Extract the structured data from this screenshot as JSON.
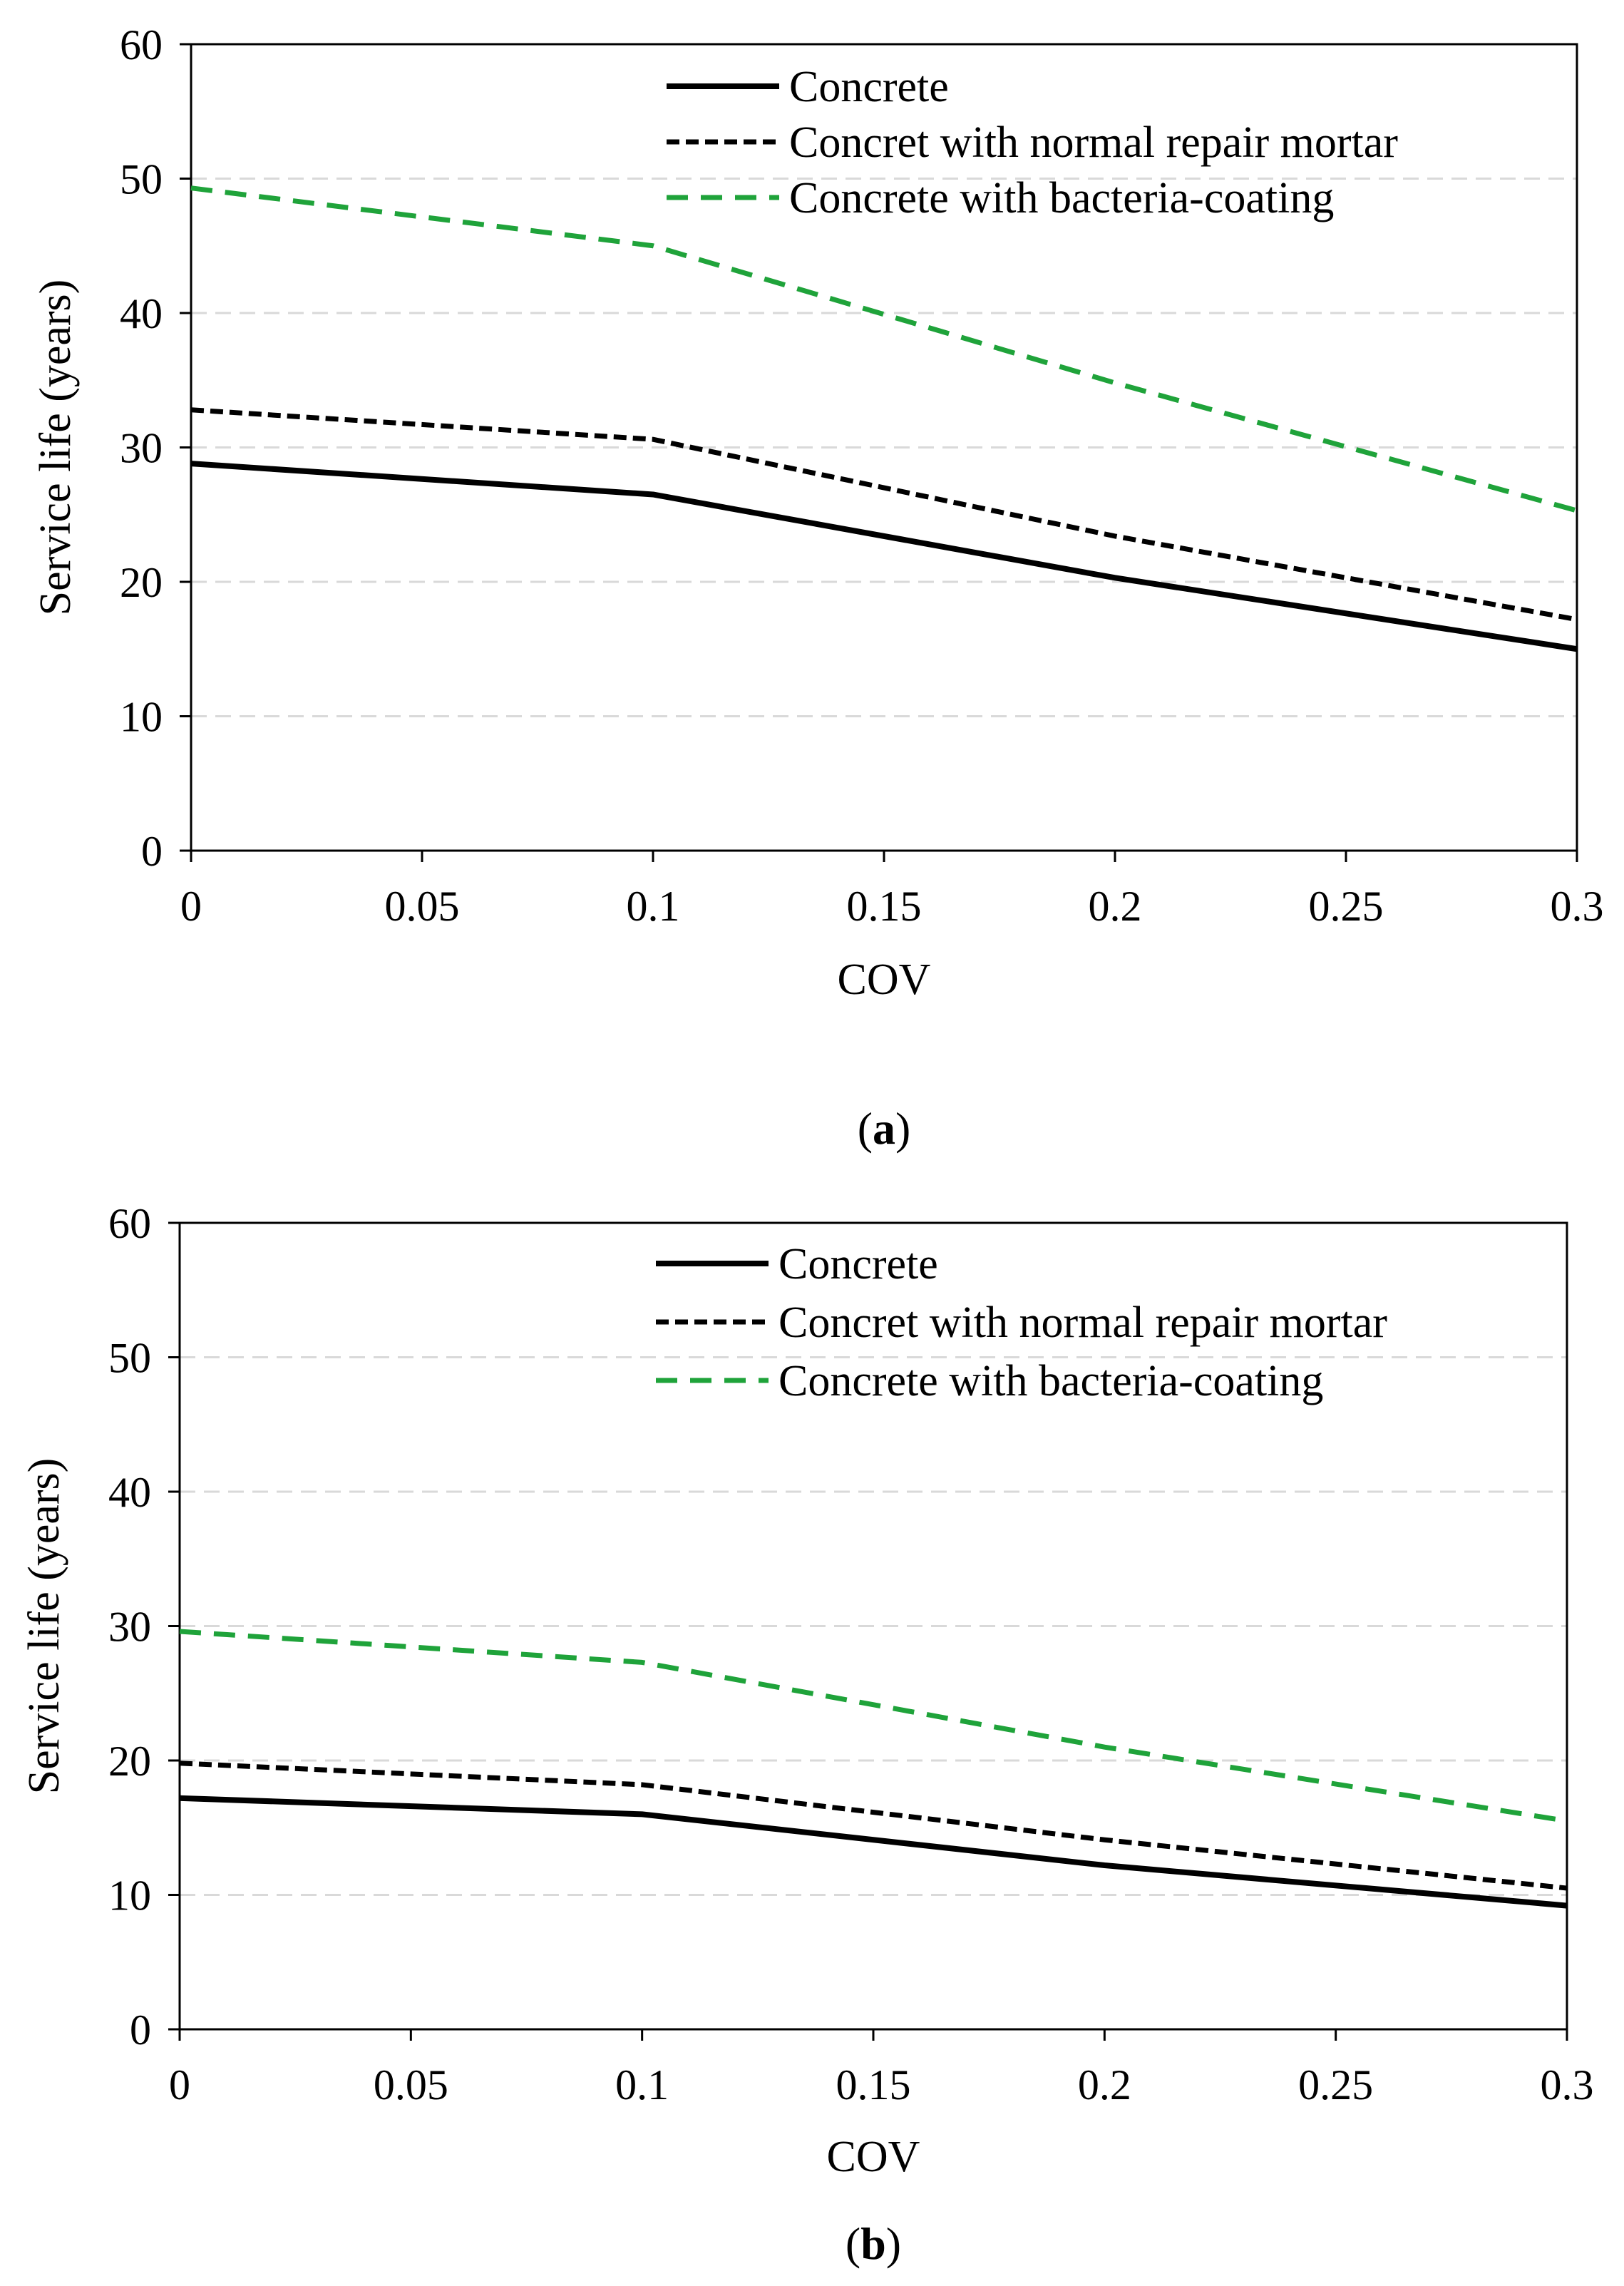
{
  "chart_data": [
    {
      "type": "line",
      "caption_open": "(",
      "caption_letter": "a",
      "caption_close": ")",
      "xlabel": "COV",
      "ylabel": "Service life (years)",
      "xlim": [
        0,
        0.3
      ],
      "ylim": [
        0,
        60
      ],
      "x_ticks": [
        "0",
        "0.05",
        "0.1",
        "0.15",
        "0.2",
        "0.25",
        "0.3"
      ],
      "y_ticks": [
        "0",
        "10",
        "20",
        "30",
        "40",
        "50",
        "60"
      ],
      "grid": "horizontal dashed",
      "legend_position": "top-right",
      "x": [
        0,
        0.1,
        0.2,
        0.3
      ],
      "series": [
        {
          "name": "Concrete",
          "values": [
            28.8,
            26.5,
            20.3,
            15.0
          ],
          "color": "#000000",
          "style": "solid"
        },
        {
          "name": "Concret with normal repair mortar",
          "values": [
            32.8,
            30.6,
            23.4,
            17.2
          ],
          "color": "#000000",
          "style": "dashed"
        },
        {
          "name": "Concrete with bacteria-coating",
          "values": [
            49.3,
            45.0,
            34.8,
            25.3
          ],
          "color": "#1fa33a",
          "style": "dashed"
        }
      ]
    },
    {
      "type": "line",
      "caption_open": "(",
      "caption_letter": "b",
      "caption_close": ")",
      "xlabel": "COV",
      "ylabel": "Service life (years)",
      "xlim": [
        0,
        0.3
      ],
      "ylim": [
        0,
        60
      ],
      "x_ticks": [
        "0",
        "0.05",
        "0.1",
        "0.15",
        "0.2",
        "0.25",
        "0.3"
      ],
      "y_ticks": [
        "0",
        "10",
        "20",
        "30",
        "40",
        "50",
        "60"
      ],
      "grid": "horizontal dashed",
      "legend_position": "top-right",
      "x": [
        0,
        0.1,
        0.2,
        0.3
      ],
      "series": [
        {
          "name": "Concrete",
          "values": [
            17.2,
            16.0,
            12.2,
            9.2
          ],
          "color": "#000000",
          "style": "solid"
        },
        {
          "name": "Concret with normal repair mortar",
          "values": [
            19.8,
            18.2,
            14.1,
            10.5
          ],
          "color": "#000000",
          "style": "dashed"
        },
        {
          "name": "Concrete with bacteria-coating",
          "values": [
            29.6,
            27.3,
            21.0,
            15.5
          ],
          "color": "#1fa33a",
          "style": "dashed"
        }
      ]
    }
  ]
}
